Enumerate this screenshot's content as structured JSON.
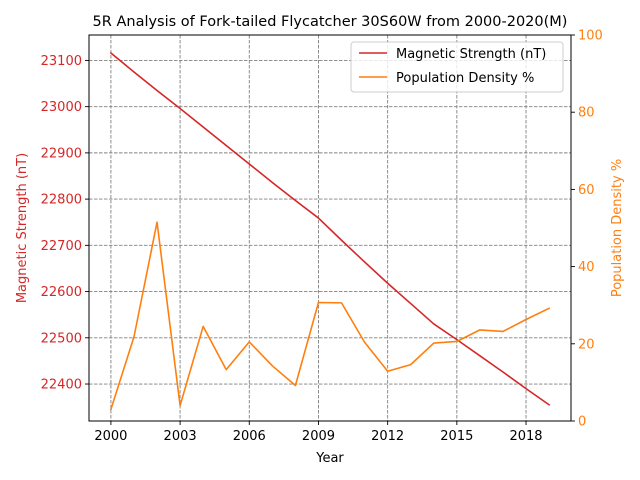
{
  "chart_data": {
    "type": "line",
    "title": "5R Analysis of Fork-tailed Flycatcher 30S60W from 2000-2020(M)",
    "xlabel": "Year",
    "ylabel_left": "Magnetic Strength (nT)",
    "ylabel_right": "Population Density %",
    "x": [
      2000,
      2001,
      2002,
      2003,
      2004,
      2005,
      2006,
      2007,
      2008,
      2009,
      2010,
      2011,
      2012,
      2013,
      2014,
      2015,
      2016,
      2017,
      2018,
      2019
    ],
    "xlim": [
      1999.05,
      2019.95
    ],
    "xticks": [
      2000,
      2003,
      2006,
      2009,
      2012,
      2015,
      2018
    ],
    "ylim_left": [
      22320,
      23155
    ],
    "yticks_left": [
      22400,
      22500,
      22600,
      22700,
      22800,
      22900,
      23000,
      23100
    ],
    "ylim_right": [
      0,
      100
    ],
    "yticks_right": [
      0,
      20,
      40,
      60,
      80,
      100
    ],
    "grid": true,
    "legend_position": "top-right",
    "series": [
      {
        "name": "Magnetic Strength (nT)",
        "axis": "left",
        "color": "#d62728",
        "values": [
          23116,
          23075,
          23035,
          22996,
          22956,
          22916,
          22876,
          22836,
          22797,
          22759,
          22711,
          22664,
          22618,
          22574,
          22530,
          22496,
          22461,
          22426,
          22390,
          22355
        ]
      },
      {
        "name": "Population Density %",
        "axis": "right",
        "color": "#ff7f0e",
        "values": [
          3.0,
          21.8,
          51.5,
          4.0,
          24.5,
          13.3,
          20.5,
          14.3,
          9.2,
          30.7,
          30.6,
          20.4,
          12.9,
          14.6,
          20.2,
          20.6,
          23.6,
          23.2,
          26.3,
          29.2
        ]
      }
    ]
  }
}
